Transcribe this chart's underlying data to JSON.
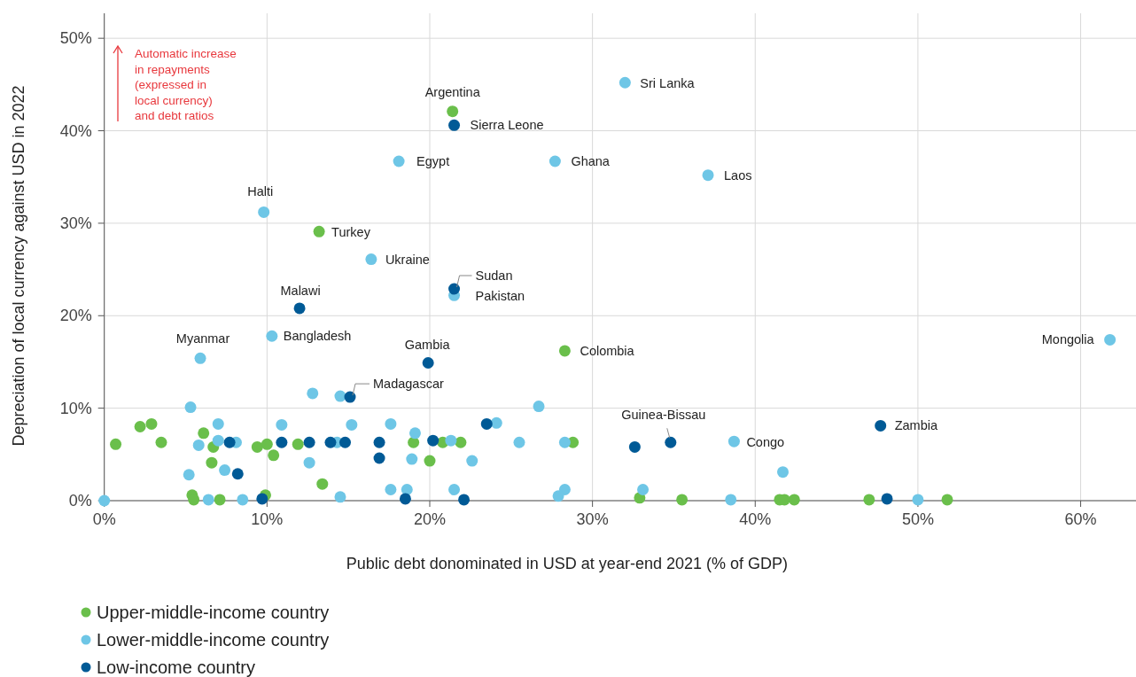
{
  "chart_data": {
    "type": "scatter",
    "xlabel": "Public debt donominated in USD at year-end 2021 (% of GDP)",
    "ylabel": "Depreciation of local currency against USD in 2022",
    "xlim": [
      0,
      63.4
    ],
    "ylim": [
      0,
      52.7
    ],
    "xticks": [
      {
        "value": 0,
        "label": "0%"
      },
      {
        "value": 10,
        "label": "10%"
      },
      {
        "value": 20,
        "label": "20%"
      },
      {
        "value": 30,
        "label": "30%"
      },
      {
        "value": 40,
        "label": "40%"
      },
      {
        "value": 50,
        "label": "50%"
      },
      {
        "value": 60,
        "label": "60%"
      }
    ],
    "yticks": [
      {
        "value": 0,
        "label": "0%"
      },
      {
        "value": 10,
        "label": "10%"
      },
      {
        "value": 20,
        "label": "20%"
      },
      {
        "value": 30,
        "label": "30%"
      },
      {
        "value": 40,
        "label": "40%"
      },
      {
        "value": 50,
        "label": "50%"
      }
    ],
    "grid": true,
    "legend": "bottom left",
    "marker": "circle",
    "series": [
      {
        "name": "Upper-middle-income country",
        "color": "#6abf4b",
        "x": [
          21.4,
          13.2,
          28.3,
          0.7,
          2.2,
          2.9,
          3.5,
          5.4,
          5.5,
          7.1,
          9.9,
          6.1,
          6.7,
          6.6,
          9.4,
          10.0,
          10.4,
          11.9,
          13.4,
          19.0,
          20.0,
          20.8,
          21.9,
          28.8,
          32.9,
          35.5,
          41.5,
          41.8,
          42.4,
          47.0,
          51.8
        ],
        "values": [
          42.1,
          29.1,
          16.2,
          6.1,
          8.0,
          8.3,
          6.3,
          0.6,
          0.1,
          0.1,
          0.6,
          7.3,
          5.8,
          4.1,
          5.8,
          6.1,
          4.9,
          6.1,
          1.8,
          6.3,
          4.3,
          6.3,
          6.3,
          6.3,
          0.3,
          0.1,
          0.1,
          0.1,
          0.1,
          0.1,
          0.1
        ]
      },
      {
        "name": "Lower-middle-income country",
        "color": "#6ec6e6",
        "x": [
          32.0,
          18.1,
          27.7,
          37.1,
          9.8,
          16.4,
          21.5,
          10.3,
          5.9,
          61.8,
          38.7,
          0,
          5.3,
          5.2,
          6.4,
          8.5,
          7.0,
          5.8,
          7.0,
          8.1,
          7.4,
          10.9,
          12.6,
          12.8,
          14.5,
          14.5,
          14.3,
          15.2,
          17.6,
          17.6,
          18.6,
          19.1,
          18.9,
          21.3,
          21.5,
          22.6,
          24.1,
          25.5,
          26.7,
          28.3,
          28.3,
          27.9,
          33.1,
          38.5,
          41.7,
          50.0
        ],
        "values": [
          45.2,
          36.7,
          36.7,
          35.2,
          31.2,
          26.1,
          22.2,
          17.8,
          15.4,
          17.4,
          6.4,
          0,
          10.1,
          2.8,
          0.1,
          0.1,
          8.3,
          6.0,
          6.5,
          6.3,
          3.3,
          8.2,
          4.1,
          11.6,
          11.3,
          0.4,
          6.3,
          8.2,
          8.3,
          1.2,
          1.2,
          7.3,
          4.5,
          6.5,
          1.2,
          4.3,
          8.4,
          6.3,
          10.2,
          6.3,
          1.2,
          0.5,
          1.2,
          0.1,
          3.1,
          0.1
        ]
      },
      {
        "name": "Low-income country",
        "color": "#005a96",
        "x": [
          21.5,
          21.5,
          12.0,
          19.9,
          15.1,
          47.7,
          34.8,
          9.7,
          7.7,
          8.2,
          10.9,
          12.6,
          13.9,
          14.8,
          16.9,
          16.9,
          18.5,
          20.2,
          22.1,
          23.5,
          32.6,
          48.1
        ],
        "values": [
          40.6,
          22.9,
          20.8,
          14.9,
          11.2,
          8.1,
          6.3,
          0.2,
          6.3,
          2.9,
          6.3,
          6.3,
          6.3,
          6.3,
          6.3,
          4.6,
          0.2,
          6.5,
          0.1,
          8.3,
          5.8,
          0.2
        ]
      }
    ],
    "annotations": [
      {
        "text": "Sri Lanka",
        "x": 32.0,
        "y": 45.2
      },
      {
        "text": "Argentina",
        "x": 21.4,
        "y": 42.1
      },
      {
        "text": "Sierra Leone",
        "x": 21.5,
        "y": 40.6
      },
      {
        "text": "Egypt",
        "x": 18.1,
        "y": 36.7
      },
      {
        "text": "Ghana",
        "x": 27.7,
        "y": 36.7
      },
      {
        "text": "Laos",
        "x": 37.1,
        "y": 35.2
      },
      {
        "text": "Halti",
        "x": 9.8,
        "y": 31.2
      },
      {
        "text": "Turkey",
        "x": 13.2,
        "y": 29.1
      },
      {
        "text": "Ukraine",
        "x": 16.4,
        "y": 26.1
      },
      {
        "text": "Sudan",
        "x": 21.5,
        "y": 22.9
      },
      {
        "text": "Pakistan",
        "x": 21.5,
        "y": 22.2
      },
      {
        "text": "Malawi",
        "x": 12.0,
        "y": 20.8
      },
      {
        "text": "Bangladesh",
        "x": 10.3,
        "y": 17.8
      },
      {
        "text": "Myanmar",
        "x": 5.9,
        "y": 15.4
      },
      {
        "text": "Gambia",
        "x": 19.9,
        "y": 14.9
      },
      {
        "text": "Colombia",
        "x": 28.3,
        "y": 16.2
      },
      {
        "text": "Madagascar",
        "x": 15.1,
        "y": 11.2
      },
      {
        "text": "Mongolia",
        "x": 61.8,
        "y": 17.4
      },
      {
        "text": "Zambia",
        "x": 47.7,
        "y": 8.1
      },
      {
        "text": "Congo",
        "x": 38.7,
        "y": 6.4
      },
      {
        "text": "Guinea-Bissau",
        "x": 34.8,
        "y": 6.3
      },
      "Automatic increase in repayments (expressed in local currency) and debt ratios"
    ]
  }
}
